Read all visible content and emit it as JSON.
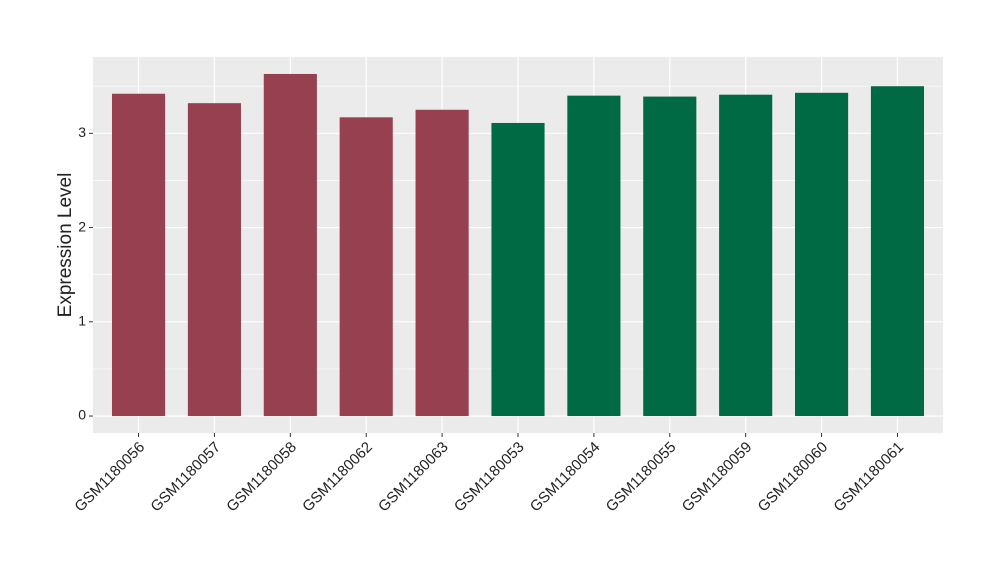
{
  "chart_data": {
    "type": "bar",
    "y_label": "Expression Level",
    "categories": [
      "GSM1180056",
      "GSM1180057",
      "GSM1180058",
      "GSM1180062",
      "GSM1180063",
      "GSM1180053",
      "GSM1180054",
      "GSM1180055",
      "GSM1180059",
      "GSM1180060",
      "GSM1180061"
    ],
    "values": [
      3.42,
      3.32,
      3.63,
      3.17,
      3.25,
      3.11,
      3.4,
      3.39,
      3.41,
      3.43,
      3.5
    ],
    "colors": [
      "#974150",
      "#974150",
      "#974150",
      "#974150",
      "#974150",
      "#006a45",
      "#006a45",
      "#006a45",
      "#006a45",
      "#006a45",
      "#006a45"
    ],
    "ylim": [
      -0.18,
      3.81
    ],
    "yticks": [
      0,
      1,
      2,
      3
    ],
    "minor_yticks": [
      0.5,
      1.5,
      2.5,
      3.5
    ],
    "grid": true
  }
}
